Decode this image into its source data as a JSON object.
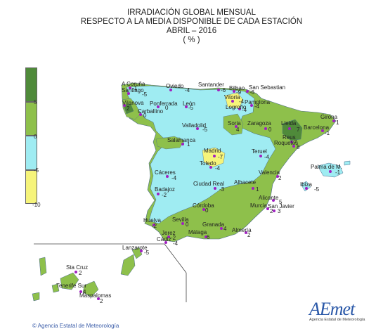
{
  "title": {
    "line1": "IRRADIACIÓN GLOBAL MENSUAL",
    "line2": "RESPECTO A LA MEDIA DISPONIBLE DE CADA ESTACIÓN",
    "line3": "ABRIL – 2016",
    "line4": "( % )"
  },
  "legend": {
    "labels": [
      "5",
      "0",
      "-5",
      "-10"
    ],
    "colors": {
      "dark_green": "#4f8a3a",
      "green": "#8ec04b",
      "cyan": "#9fecf2",
      "yellow": "#f6f47a"
    }
  },
  "stations": [
    {
      "name": "A Coruña",
      "value": "-1"
    },
    {
      "name": "Santiago",
      "value": "-5"
    },
    {
      "name": "Oviedo",
      "value": "-4"
    },
    {
      "name": "Santander",
      "value": "-6"
    },
    {
      "name": "Bilbao",
      "value": "-9"
    },
    {
      "name": "San Sebastian",
      "value": "-6"
    },
    {
      "name": "Vilanova",
      "value": "2"
    },
    {
      "name": "Ponferrada",
      "value": "0"
    },
    {
      "name": "León",
      "value": "-5"
    },
    {
      "name": "Vitoria",
      "value": "-4"
    },
    {
      "name": "Pamplona",
      "value": "-4"
    },
    {
      "name": "Carballino",
      "value": "0"
    },
    {
      "name": "Logroño",
      "value": "-4"
    },
    {
      "name": "Girona",
      "value": "1"
    },
    {
      "name": "Valladolid",
      "value": "-5"
    },
    {
      "name": "Soria",
      "value": "4"
    },
    {
      "name": "Zaragoza",
      "value": "0"
    },
    {
      "name": "Lleida",
      "value": "7"
    },
    {
      "name": "Barcelona",
      "value": "-1"
    },
    {
      "name": "Salamanca",
      "value": "1"
    },
    {
      "name": "Reus",
      "value": "7"
    },
    {
      "name": "Roquetes",
      "value": "8"
    },
    {
      "name": "Madrid",
      "value": "-7"
    },
    {
      "name": "Teruel",
      "value": "-4"
    },
    {
      "name": "Toledo",
      "value": "-4"
    },
    {
      "name": "Palma de M.",
      "value": "-1"
    },
    {
      "name": "Cáceres",
      "value": "-4"
    },
    {
      "name": "Valencia",
      "value": "2"
    },
    {
      "name": "Ciudad Real",
      "value": "-3"
    },
    {
      "name": "Albacete",
      "value": "1"
    },
    {
      "name": "Ibiza",
      "value": "-5"
    },
    {
      "name": "Badajoz",
      "value": "-2"
    },
    {
      "name": "Alicante",
      "value": "5"
    },
    {
      "name": "Córdoba",
      "value": "0"
    },
    {
      "name": "Murcia",
      "value": "2"
    },
    {
      "name": "San Javier",
      "value": "3"
    },
    {
      "name": "Huelva",
      "value": "-2"
    },
    {
      "name": "Sevilla",
      "value": "0"
    },
    {
      "name": "Granada",
      "value": "4"
    },
    {
      "name": "Almería",
      "value": "2"
    },
    {
      "name": "Jerez",
      "value": "-2"
    },
    {
      "name": "Cádiz",
      "value": "-4"
    },
    {
      "name": "Málaga",
      "value": "6"
    },
    {
      "name": "Lanzarote",
      "value": "-5"
    },
    {
      "name": "Sta Cruz",
      "value": "2"
    },
    {
      "name": "Tenerife Sur",
      "value": "4"
    },
    {
      "name": "Maspalomas",
      "value": "2"
    }
  ],
  "logo": {
    "text": "AEmet",
    "subtitle": "Agencia Estatal de Meteorología"
  },
  "copyright": "© Agencia Estatal de Meteorología"
}
